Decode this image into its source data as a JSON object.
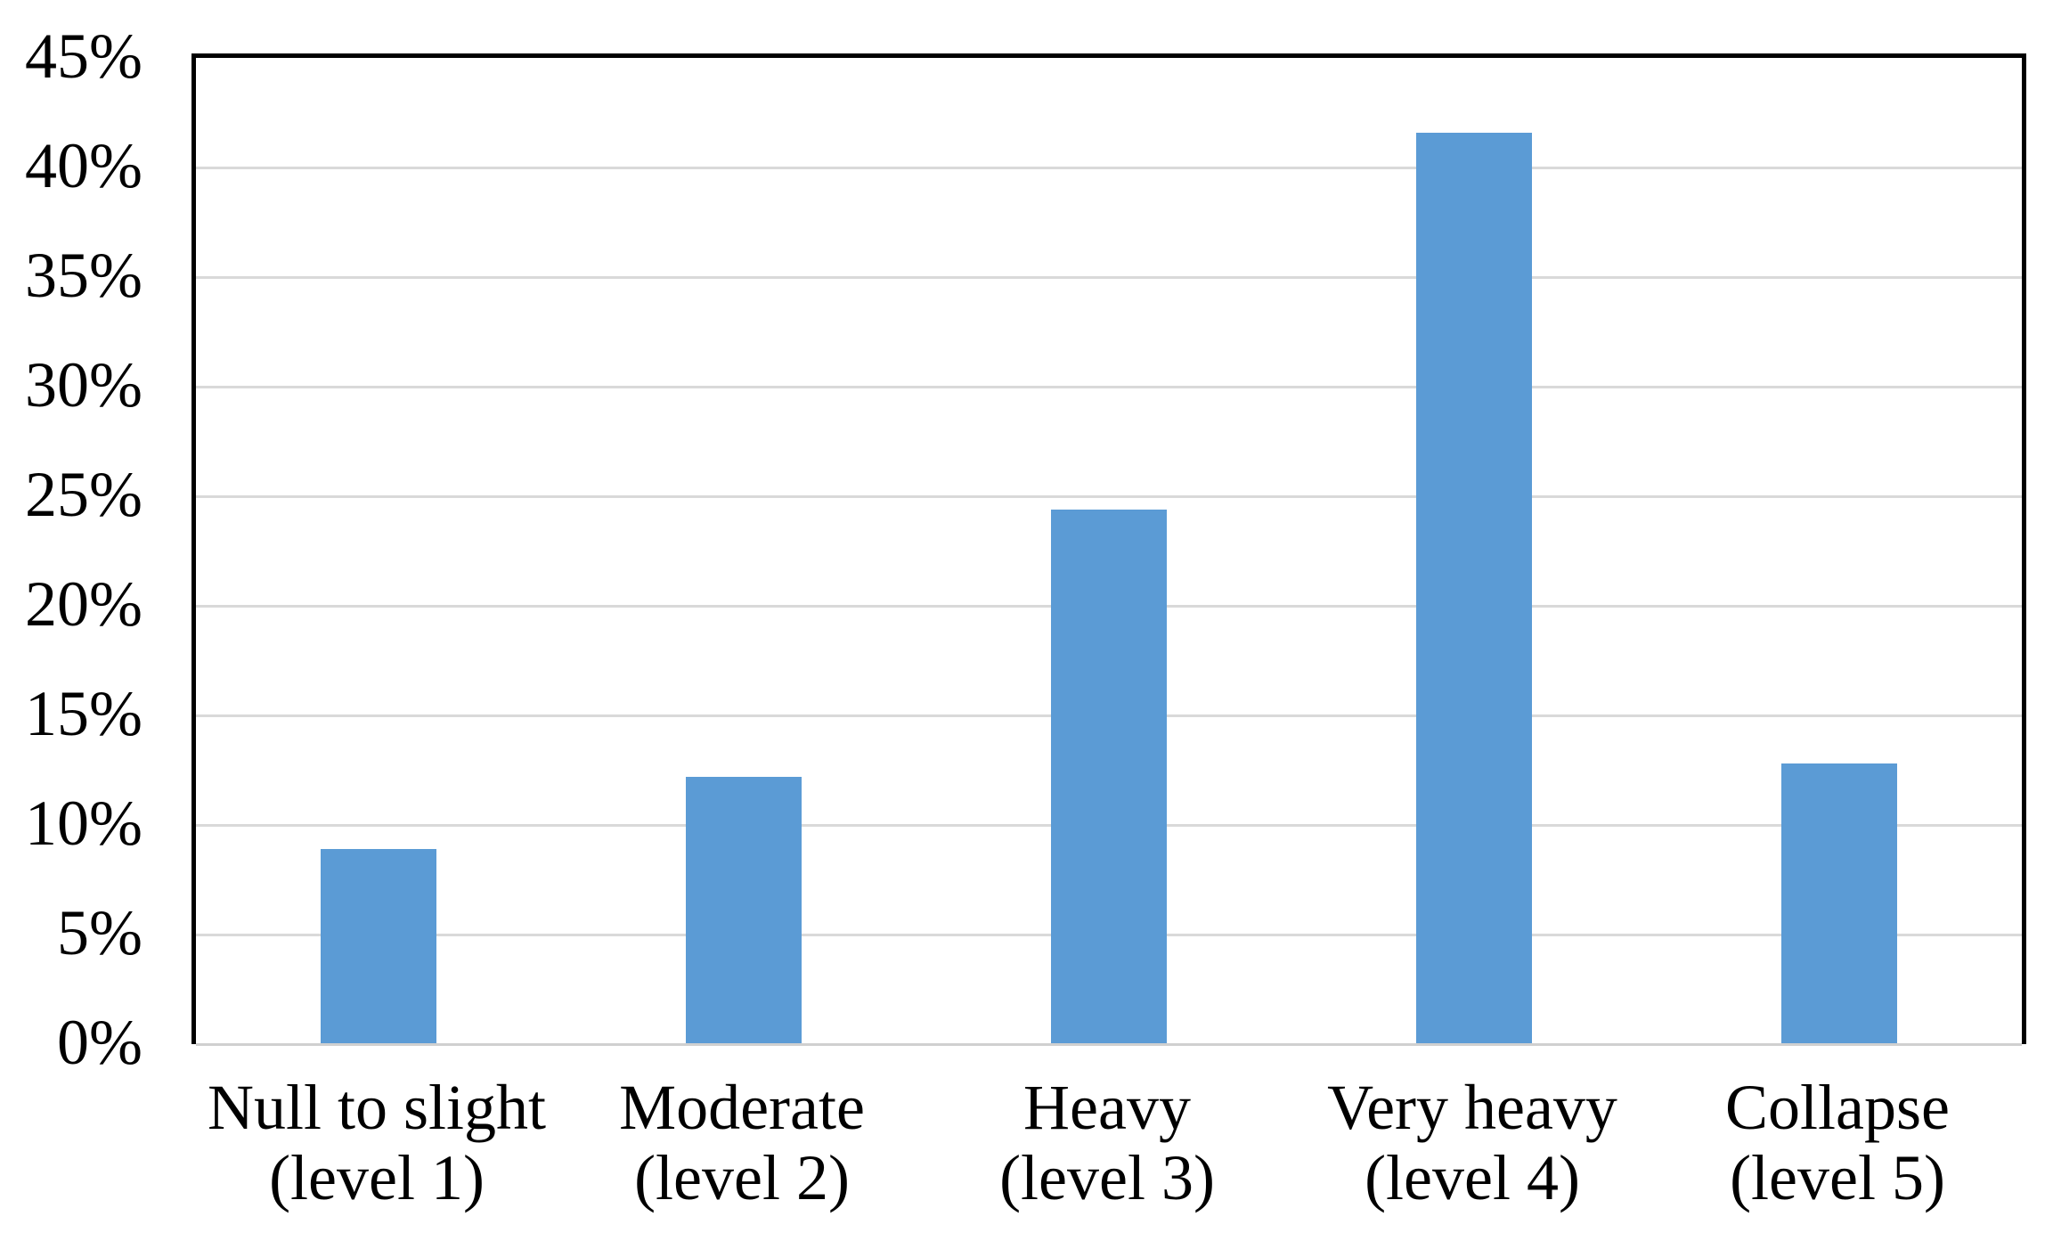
{
  "chart_data": {
    "type": "bar",
    "categories": [
      "Null to slight (level 1)",
      "Moderate (level 2)",
      "Heavy (level 3)",
      "Very heavy (level 4)",
      "Collapse (level 5)"
    ],
    "category_lines": [
      [
        "Null to slight",
        "(level 1)"
      ],
      [
        "Moderate",
        "(level 2)"
      ],
      [
        "Heavy",
        "(level 3)"
      ],
      [
        "Very heavy",
        "(level 4)"
      ],
      [
        "Collapse",
        "(level 5)"
      ]
    ],
    "values": [
      8.9,
      12.2,
      24.4,
      41.6,
      12.8
    ],
    "unit": "%",
    "ylim": [
      0,
      45
    ],
    "ytick_step": 5,
    "ytick_labels": [
      "0%",
      "5%",
      "10%",
      "15%",
      "20%",
      "25%",
      "30%",
      "35%",
      "40%",
      "45%"
    ],
    "grid": true,
    "legend": "none",
    "colors": {
      "bar": "#5B9BD5",
      "gridline": "#D9D9D9",
      "baseline": "#D0D0D0",
      "plot_border": "#000000",
      "text": "#000000",
      "background": "#FFFFFF"
    }
  }
}
